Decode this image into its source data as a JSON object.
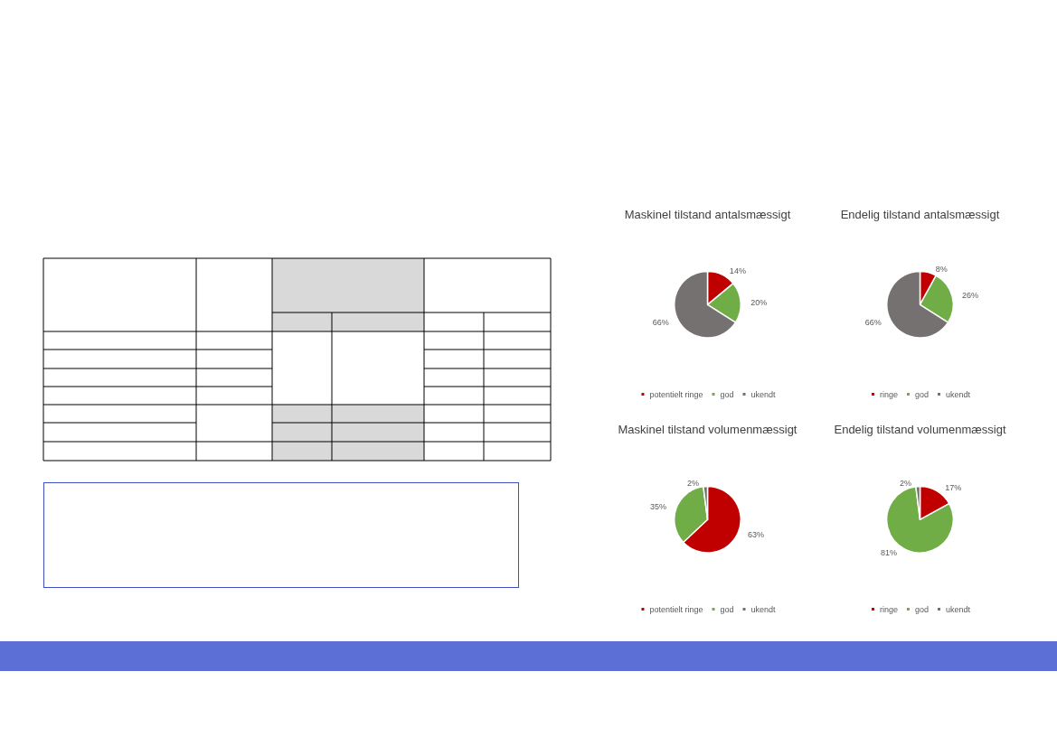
{
  "chart_data": [
    {
      "type": "pie",
      "title": "Maskinel tilstand antalsmæssigt",
      "categories": [
        "potentielt ringe",
        "god",
        "ukendt"
      ],
      "values": [
        14,
        20,
        66
      ],
      "colors": [
        "#c00000",
        "#70ad47",
        "#767171"
      ],
      "value_labels": [
        "14%",
        "20%",
        "66%"
      ],
      "legend": "bottom"
    },
    {
      "type": "pie",
      "title": "Endelig tilstand antalsmæssigt",
      "categories": [
        "ringe",
        "god",
        "ukendt"
      ],
      "values": [
        8,
        26,
        66
      ],
      "colors": [
        "#c00000",
        "#70ad47",
        "#767171"
      ],
      "value_labels": [
        "8%",
        "26%",
        "66%"
      ],
      "legend": "bottom"
    },
    {
      "type": "pie",
      "title": "Maskinel tilstand volumenmæssigt",
      "categories": [
        "potentielt ringe",
        "god",
        "ukendt"
      ],
      "values": [
        63,
        35,
        2
      ],
      "colors": [
        "#c00000",
        "#70ad47",
        "#767171"
      ],
      "value_labels": [
        "63%",
        "35%",
        "2%"
      ],
      "legend": "bottom"
    },
    {
      "type": "pie",
      "title": "Endelig tilstand volumenmæssigt",
      "categories": [
        "ringe",
        "god",
        "ukendt"
      ],
      "values": [
        17,
        81,
        2
      ],
      "colors": [
        "#c00000",
        "#70ad47",
        "#767171"
      ],
      "value_labels": [
        "17%",
        "81%",
        "2%"
      ],
      "legend": "bottom"
    }
  ]
}
